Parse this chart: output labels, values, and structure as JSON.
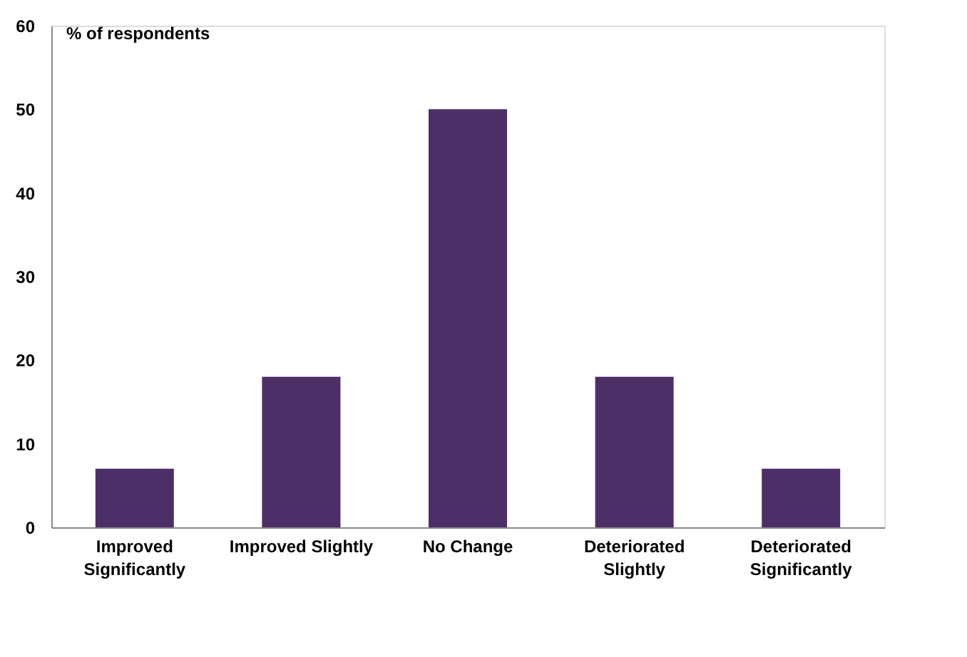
{
  "chart_data": {
    "type": "bar",
    "ylabel": "% of respondents",
    "categories": [
      "Improved\nSignificantly",
      "Improved Slightly",
      "No Change",
      "Deteriorated\nSlightly",
      "Deteriorated\nSignificantly"
    ],
    "values": [
      7,
      18,
      50,
      18,
      7
    ],
    "color": "#4d2f68",
    "ylim": [
      0,
      60
    ],
    "yticks": [
      0,
      10,
      20,
      30,
      40,
      50,
      60
    ],
    "grid": false
  }
}
